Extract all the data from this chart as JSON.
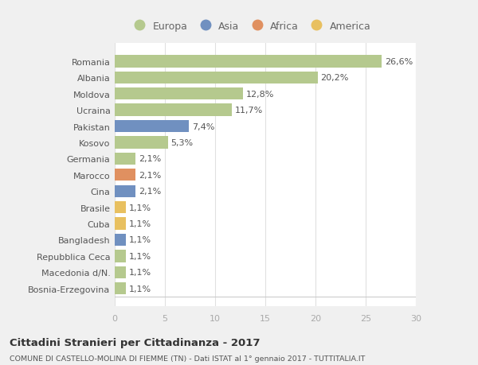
{
  "categories": [
    "Bosnia-Erzegovina",
    "Macedonia d/N.",
    "Repubblica Ceca",
    "Bangladesh",
    "Cuba",
    "Brasile",
    "Cina",
    "Marocco",
    "Germania",
    "Kosovo",
    "Pakistan",
    "Ucraina",
    "Moldova",
    "Albania",
    "Romania"
  ],
  "values": [
    1.1,
    1.1,
    1.1,
    1.1,
    1.1,
    1.1,
    2.1,
    2.1,
    2.1,
    5.3,
    7.4,
    11.7,
    12.8,
    20.2,
    26.6
  ],
  "labels": [
    "1,1%",
    "1,1%",
    "1,1%",
    "1,1%",
    "1,1%",
    "1,1%",
    "2,1%",
    "2,1%",
    "2,1%",
    "5,3%",
    "7,4%",
    "11,7%",
    "12,8%",
    "20,2%",
    "26,6%"
  ],
  "colors": [
    "#b5c98e",
    "#b5c98e",
    "#b5c98e",
    "#7090c0",
    "#e8c060",
    "#e8c060",
    "#7090c0",
    "#e09060",
    "#b5c98e",
    "#b5c98e",
    "#7090c0",
    "#b5c98e",
    "#b5c98e",
    "#b5c98e",
    "#b5c98e"
  ],
  "legend": [
    {
      "label": "Europa",
      "color": "#b5c98e"
    },
    {
      "label": "Asia",
      "color": "#7090c0"
    },
    {
      "label": "Africa",
      "color": "#e09060"
    },
    {
      "label": "America",
      "color": "#e8c060"
    }
  ],
  "title": "Cittadini Stranieri per Cittadinanza - 2017",
  "subtitle": "COMUNE DI CASTELLO-MOLINA DI FIEMME (TN) - Dati ISTAT al 1° gennaio 2017 - TUTTITALIA.IT",
  "xlim": [
    0,
    30
  ],
  "xticks": [
    0,
    5,
    10,
    15,
    20,
    25,
    30
  ],
  "background_color": "#f0f0f0",
  "plot_bg": "#ffffff",
  "grid_color": "#e0e0e0"
}
